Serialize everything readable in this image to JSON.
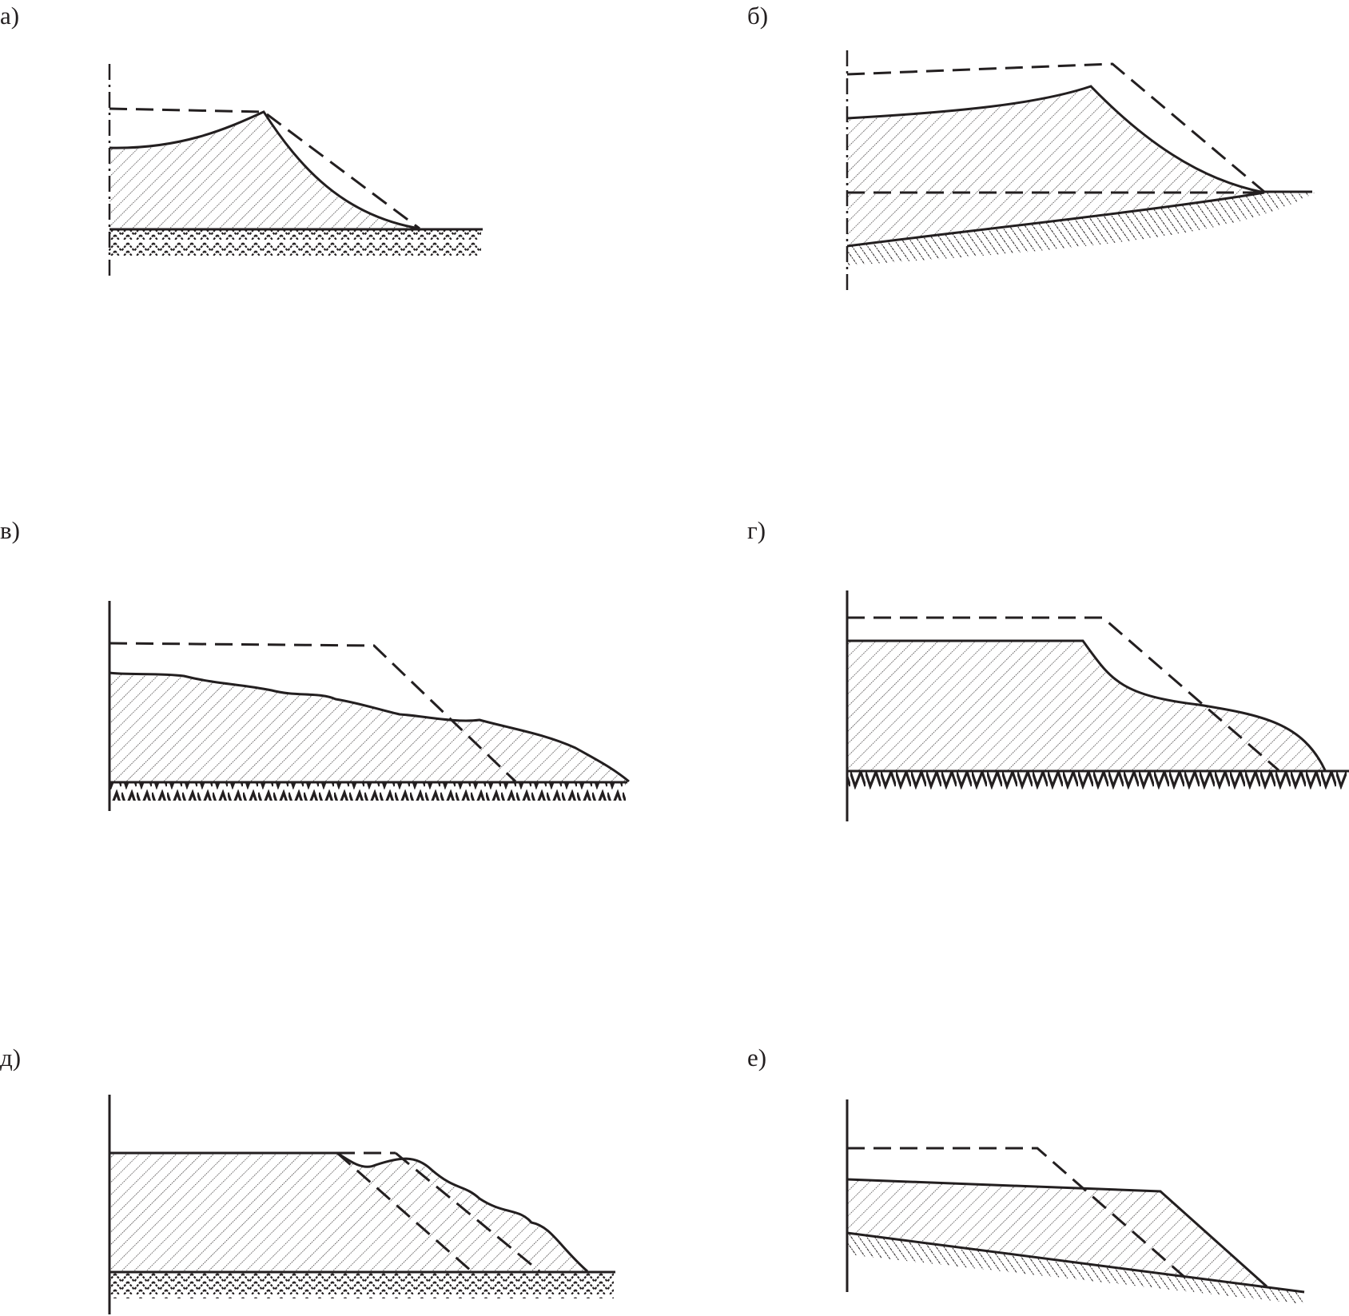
{
  "panels": [
    {
      "id": "a",
      "label": "а)"
    },
    {
      "id": "b",
      "label": "б)"
    },
    {
      "id": "v",
      "label": "в)"
    },
    {
      "id": "g",
      "label": "г)"
    },
    {
      "id": "d",
      "label": "д)"
    },
    {
      "id": "e",
      "label": "е)"
    }
  ],
  "colors": {
    "line": "#231f20",
    "background": "#ffffff"
  }
}
